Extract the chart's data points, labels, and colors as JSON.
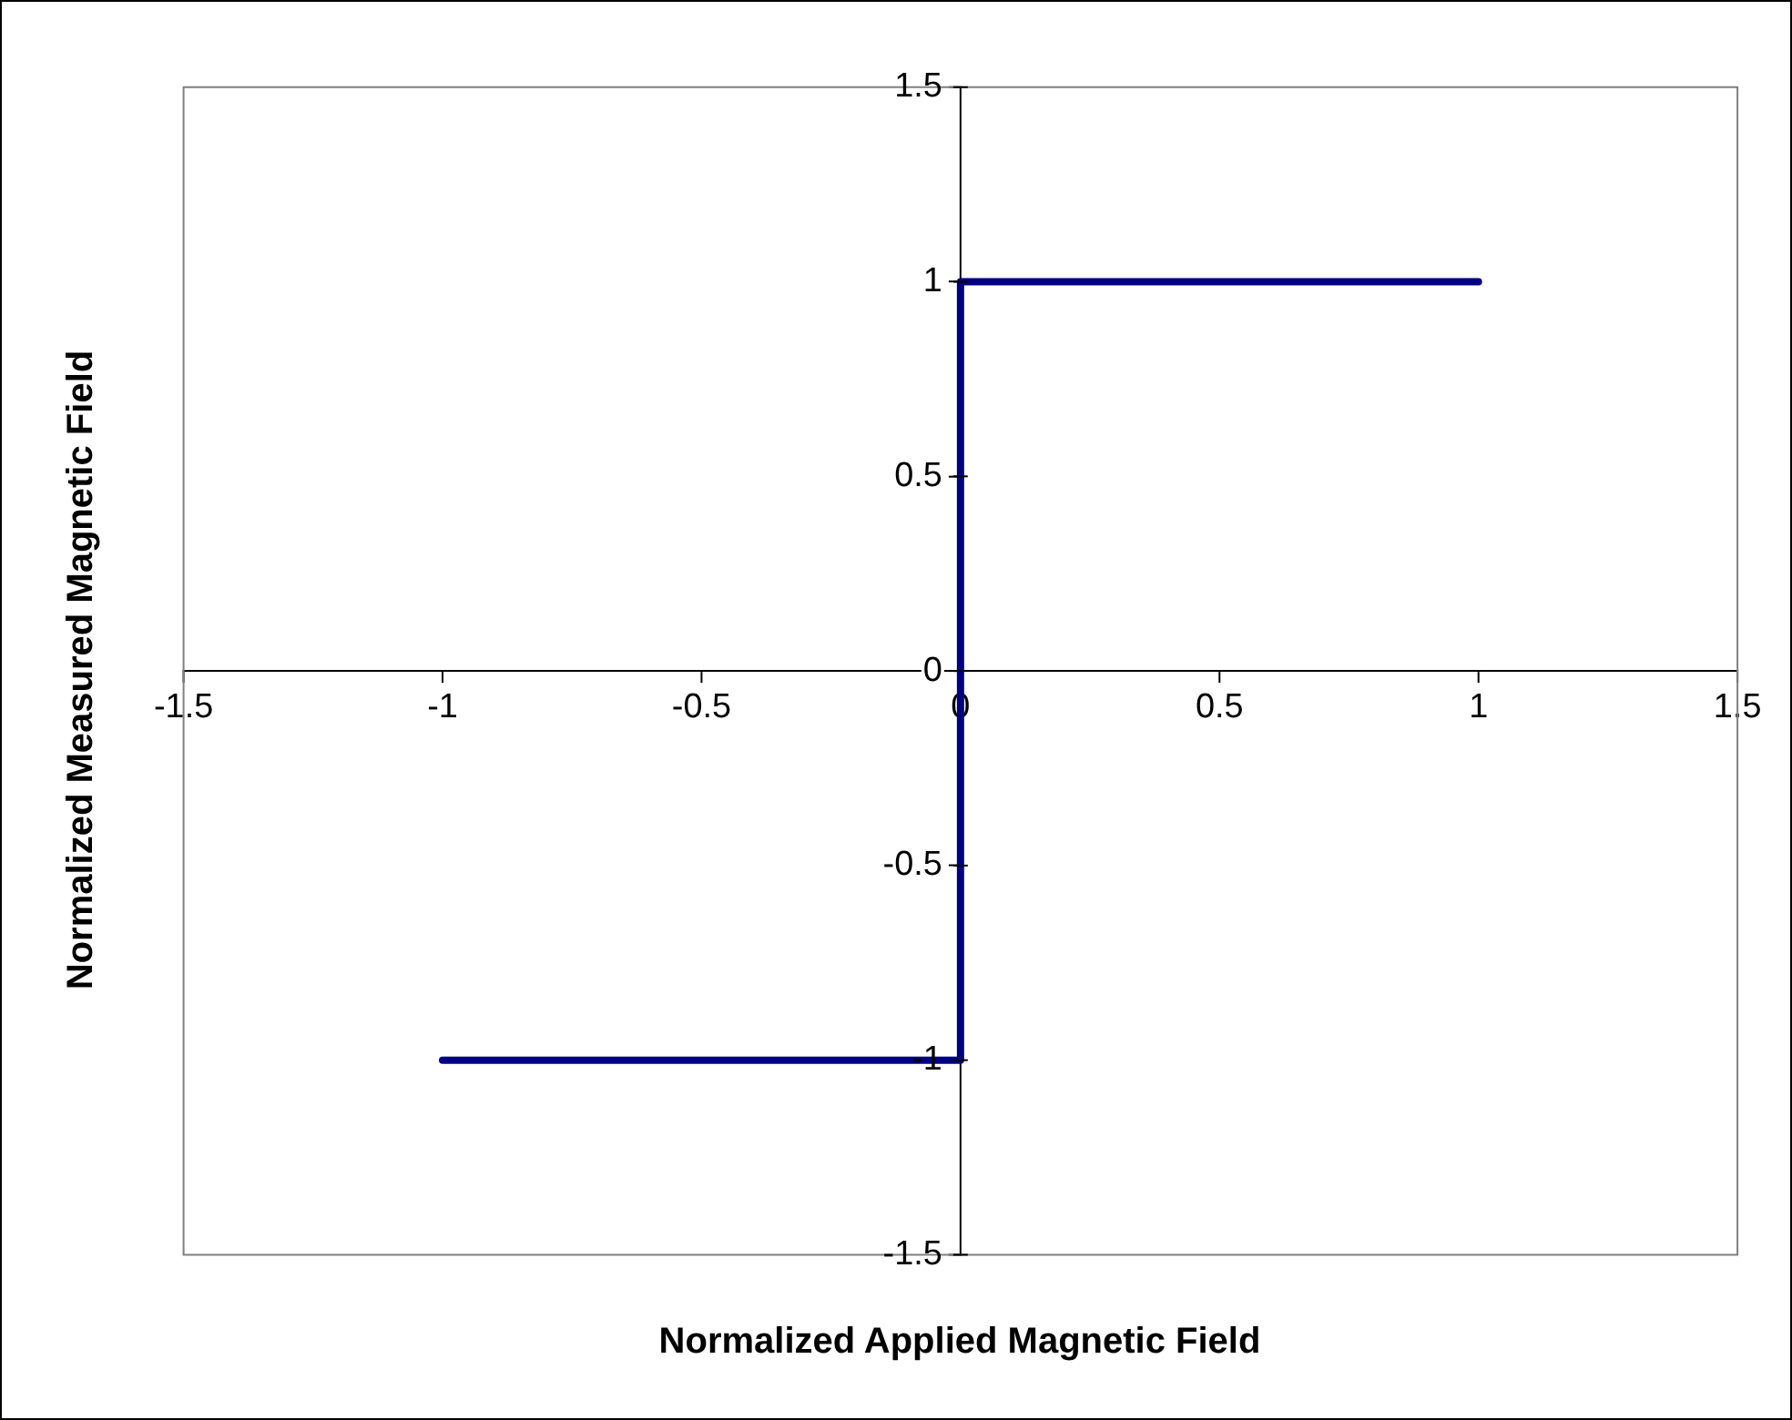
{
  "chart_data": {
    "type": "line",
    "xlabel": "Normalized Applied Magnetic Field",
    "ylabel": "Normalized Measured Magnetic Field",
    "x": [
      -1,
      0,
      0,
      1
    ],
    "series": [
      {
        "color": "#000080",
        "values": [
          -1,
          -1,
          1,
          1
        ]
      }
    ],
    "xlim": [
      -1.5,
      1.5
    ],
    "xticks": [
      -1.5,
      -1,
      -0.5,
      0,
      0.5,
      1,
      1.5
    ],
    "ylim": [
      -1.5,
      1.5
    ],
    "yticks": [
      -1.5,
      -1,
      -0.5,
      0,
      0.5,
      1,
      1.5
    ],
    "grid": false,
    "legend": false,
    "marker": "none",
    "line_style": "solid"
  }
}
